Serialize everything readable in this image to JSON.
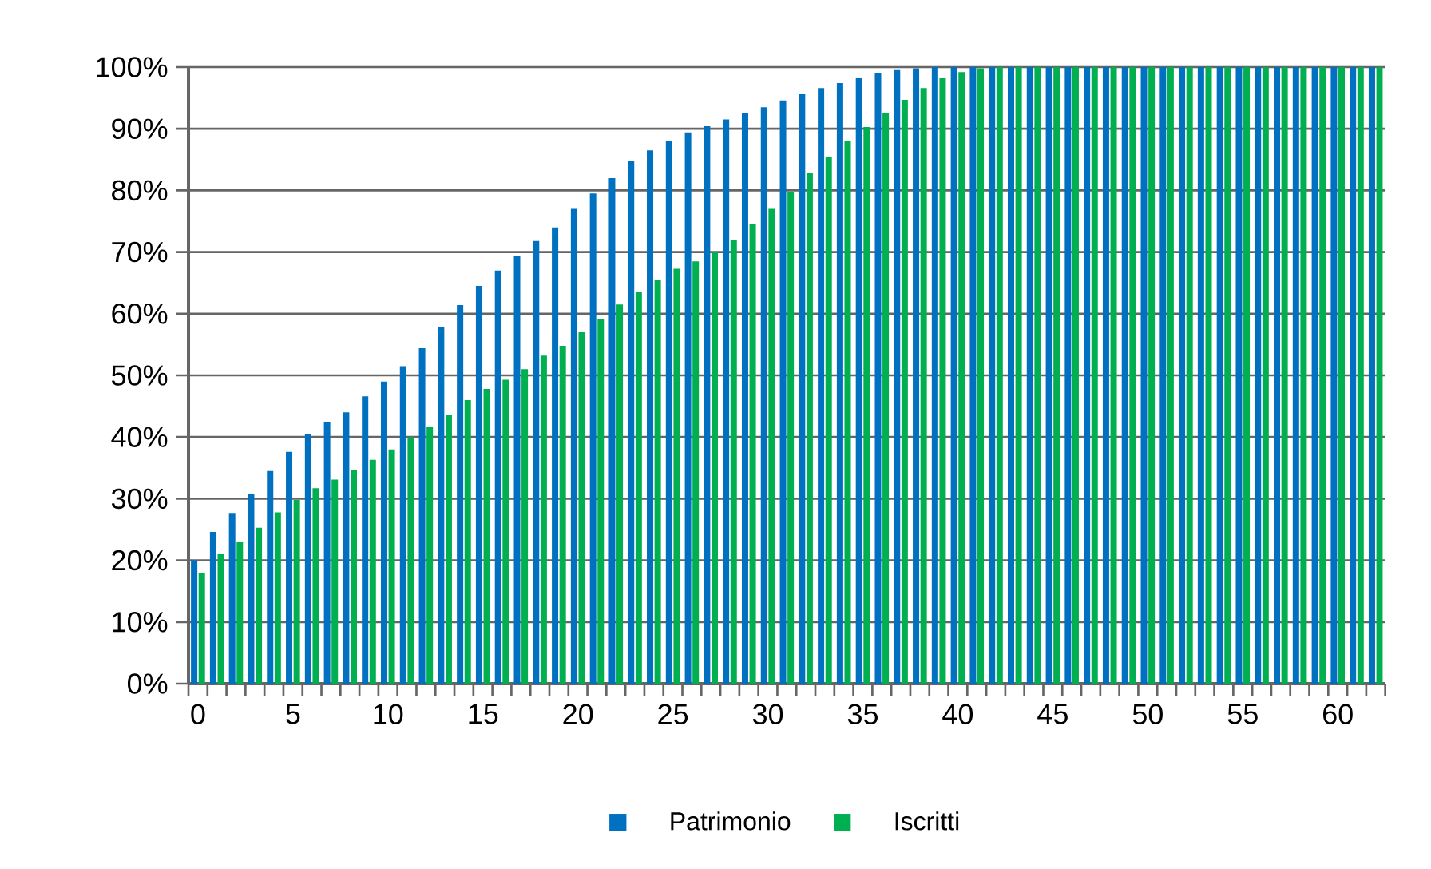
{
  "chart_data": {
    "type": "bar",
    "categories": [
      "0",
      null,
      null,
      null,
      null,
      "5",
      null,
      null,
      null,
      null,
      "10",
      null,
      null,
      null,
      null,
      "15",
      null,
      null,
      null,
      null,
      "20",
      null,
      null,
      null,
      null,
      "25",
      null,
      null,
      null,
      null,
      "30",
      null,
      null,
      null,
      null,
      "35",
      null,
      null,
      null,
      null,
      "40",
      null,
      null,
      null,
      null,
      "45",
      null,
      null,
      null,
      null,
      "50",
      null,
      null,
      null,
      null,
      "55",
      null,
      null,
      null,
      null,
      "60",
      null,
      null
    ],
    "series": [
      {
        "name": "Patrimonio",
        "color": "#0070c0",
        "values": [
          20,
          24.6,
          27.7,
          30.8,
          34.5,
          37.6,
          40.4,
          42.5,
          44,
          46.6,
          49,
          51.5,
          54.4,
          57.8,
          61.4,
          64.5,
          67,
          69.4,
          71.8,
          74,
          77,
          79.5,
          82,
          84.7,
          86.5,
          88,
          89.4,
          90.4,
          91.5,
          92.5,
          93.5,
          94.6,
          95.6,
          96.6,
          97.4,
          98.2,
          99,
          99.5,
          99.8,
          100,
          100,
          100,
          100,
          100,
          100,
          100,
          100,
          100,
          100,
          100,
          100,
          100,
          100,
          100,
          100,
          100,
          100,
          100,
          100,
          100,
          100,
          100,
          100
        ]
      },
      {
        "name": "Iscritti",
        "color": "#00b050",
        "values": [
          18,
          21,
          23,
          25.3,
          27.8,
          29.8,
          31.7,
          33.1,
          34.6,
          36.3,
          38,
          40,
          41.6,
          43.6,
          46,
          47.8,
          49.3,
          51,
          53.2,
          54.8,
          57,
          59.2,
          61.5,
          63.5,
          65.5,
          67.3,
          68.5,
          70,
          72,
          74.5,
          77,
          79.8,
          82.8,
          85.5,
          88,
          90.3,
          92.6,
          94.7,
          96.6,
          98.2,
          99.2,
          99.8,
          100,
          100,
          100,
          100,
          100,
          100,
          100,
          100,
          100,
          100,
          100,
          100,
          100,
          100,
          100,
          100,
          100,
          100,
          100,
          100,
          100
        ]
      }
    ],
    "ylim": [
      0,
      100
    ],
    "yticks": [
      {
        "value": 0,
        "label": "0%"
      },
      {
        "value": 10,
        "label": "10%"
      },
      {
        "value": 20,
        "label": "20%"
      },
      {
        "value": 30,
        "label": "30%"
      },
      {
        "value": 40,
        "label": "40%"
      },
      {
        "value": 50,
        "label": "50%"
      },
      {
        "value": 60,
        "label": "60%"
      },
      {
        "value": 70,
        "label": "70%"
      },
      {
        "value": 80,
        "label": "80%"
      },
      {
        "value": 90,
        "label": "90%"
      },
      {
        "value": 100,
        "label": "100%"
      }
    ],
    "grid": "y",
    "legend": "bottom"
  }
}
